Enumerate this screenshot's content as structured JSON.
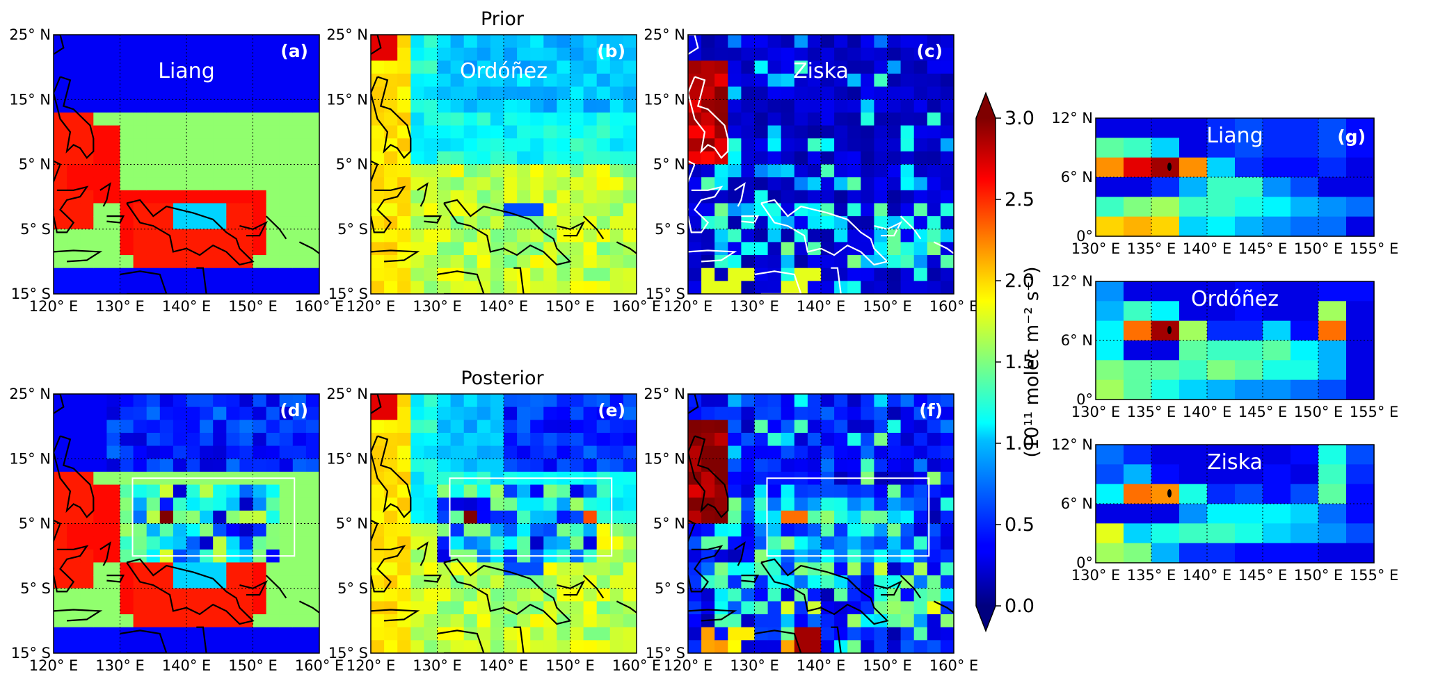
{
  "figure": {
    "prior_title": "Prior",
    "posterior_title": "Posterior"
  },
  "colorbar": {
    "label": "(10¹¹ molec m⁻² s⁻¹)",
    "ticks": [
      "0.0",
      "0.5",
      "1.0",
      "1.5",
      "2.0",
      "2.5",
      "3.0"
    ],
    "vmin": 0.0,
    "vmax": 3.0,
    "colormap": "jet"
  },
  "large_map": {
    "lon_ticks": [
      "120° E",
      "130° E",
      "140° E",
      "150° E",
      "160° E"
    ],
    "lat_ticks": [
      "25° N",
      "15° N",
      "5° N",
      "5° S",
      "15° S"
    ],
    "lon_range": [
      120,
      160
    ],
    "lat_range": [
      -15,
      25
    ]
  },
  "small_map": {
    "lon_ticks": [
      "130° E",
      "135° E",
      "140° E",
      "145° E",
      "150° E",
      "155° E"
    ],
    "lat_ticks": [
      "12° N",
      "6° N",
      "0°"
    ],
    "lon_range": [
      130,
      155
    ],
    "lat_range": [
      0,
      12
    ]
  },
  "inversion_region_box": {
    "lon": [
      130,
      155
    ],
    "lat": [
      0,
      12
    ]
  },
  "panels": [
    {
      "id": "a",
      "letter": "(a)",
      "name": "Liang",
      "row": "prior",
      "coast": "black"
    },
    {
      "id": "b",
      "letter": "(b)",
      "name": "Ordóñez",
      "row": "prior",
      "coast": "black"
    },
    {
      "id": "c",
      "letter": "(c)",
      "name": "Ziska",
      "row": "prior",
      "coast": "white"
    },
    {
      "id": "d",
      "letter": "(d)",
      "name": "",
      "row": "posterior",
      "coast": "black"
    },
    {
      "id": "e",
      "letter": "(e)",
      "name": "",
      "row": "posterior",
      "coast": "black"
    },
    {
      "id": "f",
      "letter": "(f)",
      "name": "",
      "row": "posterior",
      "coast": "black"
    },
    {
      "id": "g",
      "letter": "(g)",
      "name": "Liang",
      "row": "zoom"
    },
    {
      "id": "g2",
      "letter": "",
      "name": "Ordóñez",
      "row": "zoom"
    },
    {
      "id": "g3",
      "letter": "",
      "name": "Ziska",
      "row": "zoom"
    }
  ]
}
